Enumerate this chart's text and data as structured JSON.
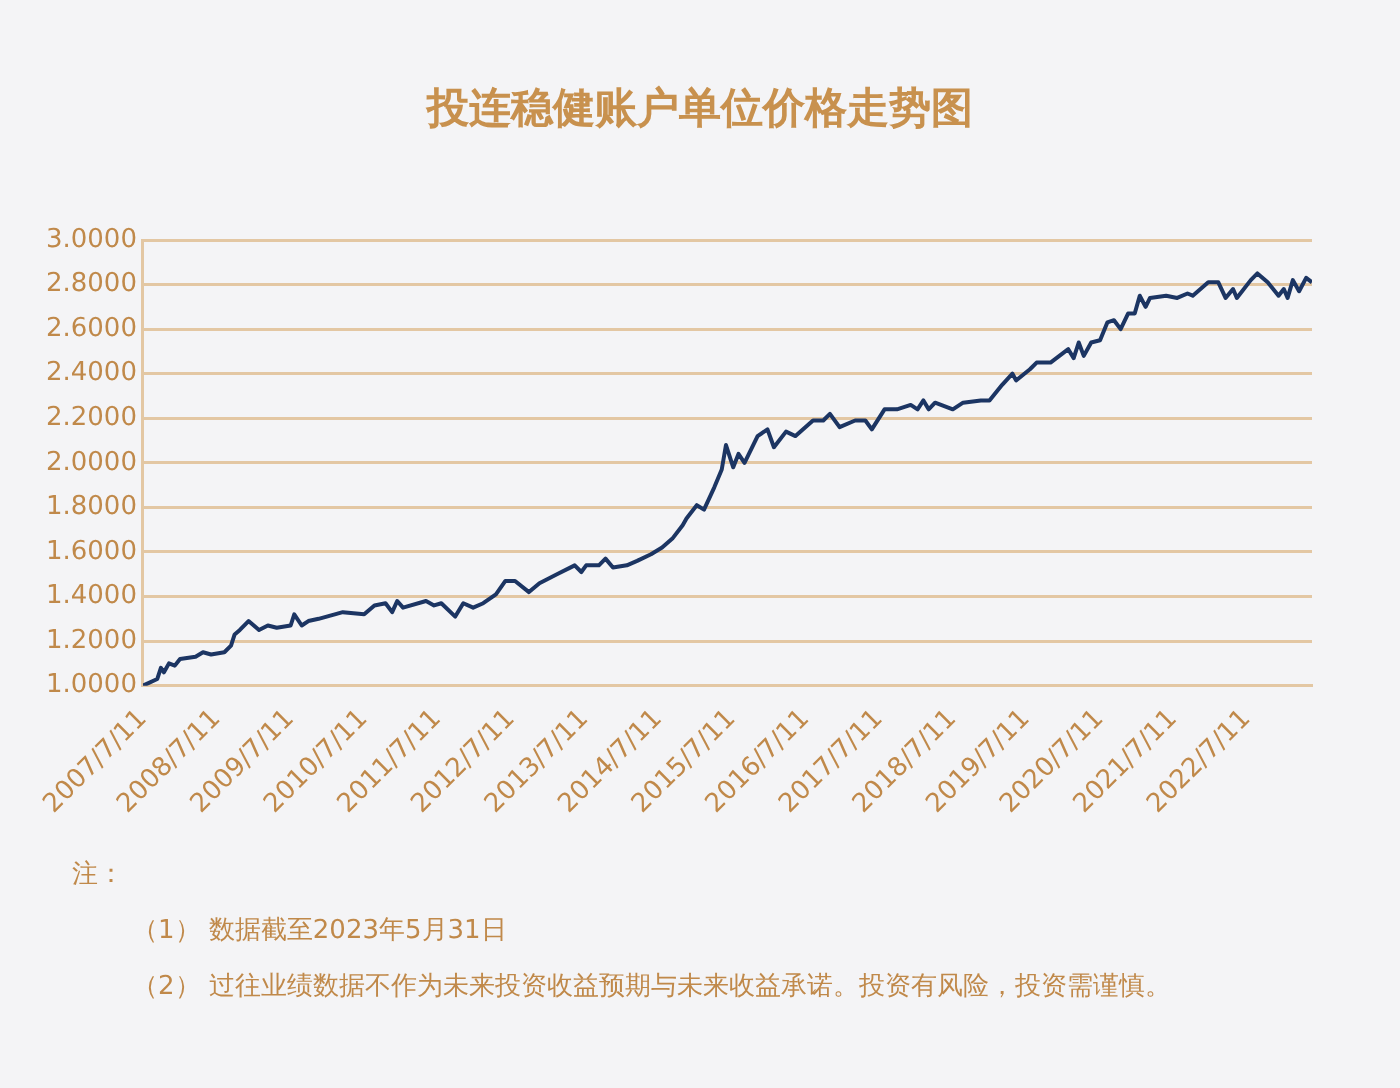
{
  "chart_data": {
    "type": "line",
    "title": "投连稳健账户单位价格走势图",
    "annotations": [
      "注：",
      "（1） 数据截至2023年5月31日",
      "（2） 过往业绩数据不作为未来投资收益预期与未来收益承诺。投资有风险，投资需谨慎。"
    ],
    "x": [
      "2007-07-11",
      "2007-09-20",
      "2007-10-08",
      "2007-10-23",
      "2007-11-17",
      "2007-12-16",
      "2008-01-11",
      "2008-03-28",
      "2008-05-04",
      "2008-06-13",
      "2008-08-18",
      "2008-09-20",
      "2008-10-08",
      "2008-11-03",
      "2008-12-16",
      "2009-02-06",
      "2009-03-22",
      "2009-05-05",
      "2009-07-13",
      "2009-07-31",
      "2009-09-06",
      "2009-10-09",
      "2009-11-29",
      "2010-03-29",
      "2010-07-13",
      "2010-09-02",
      "2010-10-27",
      "2010-11-29",
      "2010-12-24",
      "2011-01-22",
      "2011-05-16",
      "2011-06-25",
      "2011-07-31",
      "2011-10-08",
      "2011-11-17",
      "2012-01-05",
      "2012-02-24",
      "2012-04-27",
      "2012-06-13",
      "2012-07-31",
      "2012-10-08",
      "2012-11-29",
      "2013-02-24",
      "2013-05-23",
      "2013-06-25",
      "2013-07-19",
      "2013-09-20",
      "2013-10-23",
      "2013-11-29",
      "2014-02-06",
      "2014-03-29",
      "2014-06-06",
      "2014-07-31",
      "2014-09-20",
      "2014-11-10",
      "2014-11-29",
      "2015-01-19",
      "2015-02-24",
      "2015-04-16",
      "2015-05-23",
      "2015-06-13",
      "2015-07-19",
      "2015-08-14",
      "2015-09-13",
      "2015-11-17",
      "2016-01-05",
      "2016-02-06",
      "2016-04-06",
      "2016-05-23",
      "2016-08-18",
      "2016-10-08",
      "2016-11-10",
      "2016-12-28",
      "2017-03-15",
      "2017-05-05",
      "2017-06-06",
      "2017-08-08",
      "2017-10-09",
      "2017-12-16",
      "2018-01-19",
      "2018-02-17",
      "2018-03-15",
      "2018-04-16",
      "2018-07-13",
      "2018-09-02",
      "2018-11-29",
      "2019-01-11",
      "2019-03-15",
      "2019-05-05",
      "2019-05-23",
      "2019-07-31",
      "2019-09-02",
      "2019-11-10",
      "2020-02-06",
      "2020-03-04",
      "2020-03-29",
      "2020-04-23",
      "2020-05-30",
      "2020-07-13",
      "2020-08-18",
      "2020-09-20",
      "2020-10-23",
      "2020-11-29",
      "2021-01-01",
      "2021-01-26",
      "2021-02-24",
      "2021-03-18",
      "2021-06-06",
      "2021-07-31",
      "2021-09-20",
      "2021-10-16",
      "2022-01-01",
      "2022-02-20",
      "2022-03-28",
      "2022-05-04",
      "2022-05-23",
      "2022-07-31",
      "2022-09-02",
      "2022-10-23",
      "2022-12-16",
      "2023-01-11",
      "2023-01-30",
      "2023-02-25",
      "2023-03-28",
      "2023-05-02",
      "2023-05-31"
    ],
    "series": [
      {
        "color": "#1c3563",
        "values": [
          1.0,
          1.03,
          1.08,
          1.06,
          1.1,
          1.09,
          1.12,
          1.13,
          1.15,
          1.14,
          1.15,
          1.18,
          1.23,
          1.25,
          1.29,
          1.25,
          1.27,
          1.26,
          1.27,
          1.32,
          1.27,
          1.29,
          1.3,
          1.33,
          1.32,
          1.36,
          1.37,
          1.33,
          1.38,
          1.35,
          1.38,
          1.36,
          1.37,
          1.31,
          1.37,
          1.35,
          1.37,
          1.41,
          1.47,
          1.47,
          1.42,
          1.46,
          1.5,
          1.54,
          1.51,
          1.54,
          1.54,
          1.57,
          1.53,
          1.54,
          1.56,
          1.59,
          1.62,
          1.66,
          1.72,
          1.75,
          1.81,
          1.79,
          1.89,
          1.97,
          2.08,
          1.98,
          2.04,
          2.0,
          2.12,
          2.15,
          2.07,
          2.14,
          2.12,
          2.19,
          2.19,
          2.22,
          2.16,
          2.19,
          2.19,
          2.15,
          2.24,
          2.24,
          2.26,
          2.24,
          2.28,
          2.24,
          2.27,
          2.24,
          2.27,
          2.28,
          2.28,
          2.35,
          2.4,
          2.37,
          2.42,
          2.45,
          2.45,
          2.51,
          2.47,
          2.54,
          2.48,
          2.54,
          2.55,
          2.63,
          2.64,
          2.6,
          2.67,
          2.67,
          2.75,
          2.7,
          2.74,
          2.75,
          2.74,
          2.76,
          2.75,
          2.81,
          2.81,
          2.74,
          2.78,
          2.74,
          2.82,
          2.85,
          2.81,
          2.75,
          2.78,
          2.74,
          2.82,
          2.77,
          2.83,
          2.81
        ]
      }
    ],
    "xlim": [
      "2007-07-11",
      "2023-05-31"
    ],
    "xticks": [
      {
        "value": "2007-07-11",
        "label": "2007/7/11"
      },
      {
        "value": "2008-07-11",
        "label": "2008/7/11"
      },
      {
        "value": "2009-07-11",
        "label": "2009/7/11"
      },
      {
        "value": "2010-07-11",
        "label": "2010/7/11"
      },
      {
        "value": "2011-07-11",
        "label": "2011/7/11"
      },
      {
        "value": "2012-07-11",
        "label": "2012/7/11"
      },
      {
        "value": "2013-07-11",
        "label": "2013/7/11"
      },
      {
        "value": "2014-07-11",
        "label": "2014/7/11"
      },
      {
        "value": "2015-07-11",
        "label": "2015/7/11"
      },
      {
        "value": "2016-07-11",
        "label": "2016/7/11"
      },
      {
        "value": "2017-07-11",
        "label": "2017/7/11"
      },
      {
        "value": "2018-07-11",
        "label": "2018/7/11"
      },
      {
        "value": "2019-07-11",
        "label": "2019/7/11"
      },
      {
        "value": "2020-07-11",
        "label": "2020/7/11"
      },
      {
        "value": "2021-07-11",
        "label": "2021/7/11"
      },
      {
        "value": "2022-07-11",
        "label": "2022/7/11"
      }
    ],
    "ylim": [
      1,
      3
    ],
    "yticks": [
      {
        "value": 1,
        "label": "1.0000"
      },
      {
        "value": 1.2,
        "label": "1.2000"
      },
      {
        "value": 1.4,
        "label": "1.4000"
      },
      {
        "value": 1.6,
        "label": "1.6000"
      },
      {
        "value": 1.8,
        "label": "1.8000"
      },
      {
        "value": 2,
        "label": "2.0000"
      },
      {
        "value": 2.2,
        "label": "2.2000"
      },
      {
        "value": 2.4,
        "label": "2.4000"
      },
      {
        "value": 2.6,
        "label": "2.6000"
      },
      {
        "value": 2.8,
        "label": "2.8000"
      },
      {
        "value": 3,
        "label": "3.0000"
      }
    ],
    "grid": "y",
    "legend": false,
    "marker": "none",
    "line_style": "solid"
  }
}
